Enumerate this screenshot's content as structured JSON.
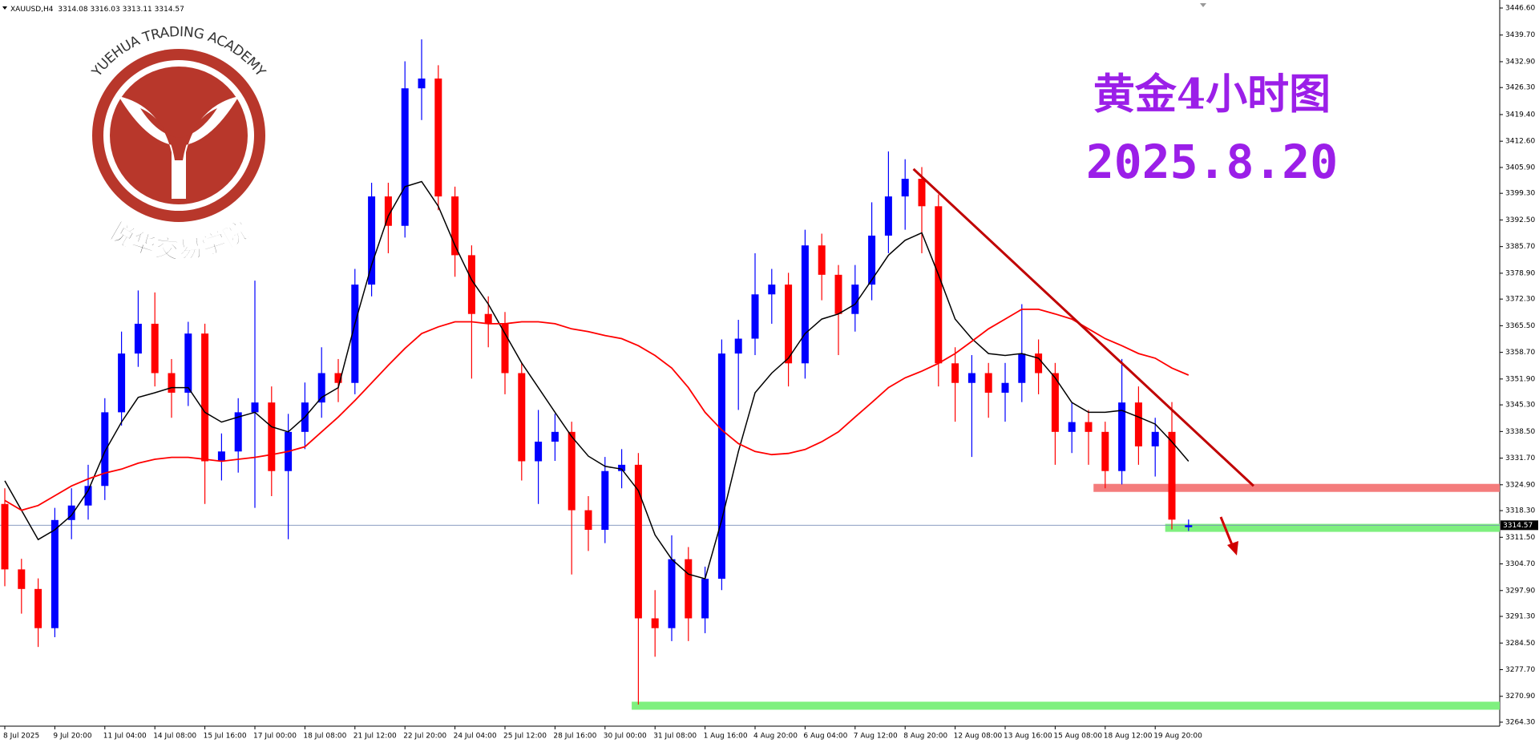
{
  "chart_data": {
    "type": "candlestick",
    "symbol": "XAUUSD,H4",
    "title": "黄金4小时图",
    "subtitle": "2025.8.20",
    "categories": [
      "8 Jul 2025",
      null,
      null,
      "9 Jul 20:00",
      null,
      null,
      "11 Jul 04:00",
      null,
      null,
      "14 Jul 08:00",
      null,
      null,
      "15 Jul 16:00",
      null,
      null,
      "17 Jul 00:00",
      null,
      null,
      "18 Jul 08:00",
      null,
      null,
      "21 Jul 12:00",
      null,
      null,
      "22 Jul 20:00",
      null,
      null,
      "24 Jul 04:00",
      null,
      null,
      "25 Jul 12:00",
      null,
      null,
      "28 Jul 16:00",
      null,
      null,
      "30 Jul 00:00",
      null,
      null,
      "31 Jul 08:00",
      null,
      null,
      "1 Aug 16:00",
      null,
      null,
      "4 Aug 20:00",
      null,
      null,
      "6 Aug 04:00",
      null,
      null,
      "7 Aug 12:00",
      null,
      null,
      "8 Aug 20:00",
      null,
      null,
      "12 Aug 08:00",
      null,
      null,
      "13 Aug 16:00",
      null,
      null,
      "15 Aug 08:00",
      null,
      null,
      "18 Aug 12:00",
      null,
      null,
      "19 Aug 20:00",
      null,
      null
    ],
    "ohlc": [
      [
        3320.0,
        3324.0,
        3299.0,
        3303.3
      ],
      [
        3303.3,
        3306.0,
        3292.0,
        3298.3
      ],
      [
        3298.3,
        3301.0,
        3283.5,
        3288.3
      ],
      [
        3288.3,
        3319.0,
        3286.0,
        3315.9
      ],
      [
        3315.9,
        3324.0,
        3311.0,
        3319.6
      ],
      [
        3319.6,
        3330.0,
        3316.0,
        3324.6
      ],
      [
        3324.6,
        3347.0,
        3321.0,
        3343.4
      ],
      [
        3343.4,
        3364.0,
        3340.0,
        3358.4
      ],
      [
        3358.4,
        3374.5,
        3355.0,
        3366.0
      ],
      [
        3366.0,
        3374.0,
        3350.0,
        3353.4
      ],
      [
        3353.4,
        3357.0,
        3342.0,
        3348.4
      ],
      [
        3348.4,
        3366.5,
        3345.0,
        3363.5
      ],
      [
        3363.5,
        3366.0,
        3320.0,
        3330.9
      ],
      [
        3330.9,
        3338.0,
        3326.0,
        3333.4
      ],
      [
        3333.4,
        3347.0,
        3328.0,
        3343.4
      ],
      [
        3343.4,
        3377.0,
        3319.0,
        3345.9
      ],
      [
        3345.9,
        3350.0,
        3322.0,
        3328.4
      ],
      [
        3328.4,
        3343.0,
        3311.0,
        3338.4
      ],
      [
        3338.4,
        3351.0,
        3334.0,
        3345.9
      ],
      [
        3345.9,
        3360.0,
        3342.0,
        3353.4
      ],
      [
        3353.4,
        3357.0,
        3346.0,
        3350.9
      ],
      [
        3350.9,
        3380.0,
        3348.0,
        3376.0
      ],
      [
        3376.0,
        3402.0,
        3373.0,
        3398.5
      ],
      [
        3398.5,
        3402.0,
        3384.0,
        3391.0
      ],
      [
        3391.0,
        3433.0,
        3388.0,
        3426.1
      ],
      [
        3426.1,
        3438.6,
        3418.0,
        3428.6
      ],
      [
        3428.6,
        3432.0,
        3395.0,
        3398.5
      ],
      [
        3398.5,
        3401.0,
        3378.0,
        3383.5
      ],
      [
        3383.5,
        3386.0,
        3352.0,
        3368.5
      ],
      [
        3368.5,
        3373.0,
        3360.0,
        3366.0
      ],
      [
        3366.0,
        3369.0,
        3348.0,
        3353.4
      ],
      [
        3353.4,
        3356.0,
        3326.0,
        3330.9
      ],
      [
        3330.9,
        3344.0,
        3320.0,
        3335.9
      ],
      [
        3335.9,
        3343.0,
        3331.0,
        3338.4
      ],
      [
        3338.4,
        3341.0,
        3302.0,
        3318.4
      ],
      [
        3318.4,
        3322.0,
        3308.0,
        3313.4
      ],
      [
        3313.4,
        3332.0,
        3310.0,
        3328.4
      ],
      [
        3328.4,
        3334.0,
        3324.0,
        3330.0
      ],
      [
        3330.0,
        3333.0,
        3268.8,
        3290.8
      ],
      [
        3290.8,
        3298.0,
        3281.0,
        3288.3
      ],
      [
        3288.3,
        3312.0,
        3285.0,
        3305.9
      ],
      [
        3305.9,
        3309.0,
        3285.0,
        3290.8
      ],
      [
        3290.8,
        3304.0,
        3287.0,
        3300.9
      ],
      [
        3300.9,
        3362.0,
        3298.0,
        3358.4
      ],
      [
        3358.4,
        3367.0,
        3344.0,
        3362.2
      ],
      [
        3362.2,
        3384.0,
        3358.0,
        3373.5
      ],
      [
        3373.5,
        3380.0,
        3366.0,
        3376.0
      ],
      [
        3376.0,
        3379.0,
        3350.0,
        3355.9
      ],
      [
        3355.9,
        3390.0,
        3352.0,
        3386.0
      ],
      [
        3386.0,
        3389.0,
        3372.0,
        3378.5
      ],
      [
        3378.5,
        3381.0,
        3358.0,
        3368.5
      ],
      [
        3368.5,
        3381.0,
        3364.0,
        3376.0
      ],
      [
        3376.0,
        3397.0,
        3372.0,
        3388.5
      ],
      [
        3388.5,
        3410.0,
        3384.0,
        3398.5
      ],
      [
        3398.5,
        3408.0,
        3390.0,
        3403.0
      ],
      [
        3403.0,
        3406.0,
        3384.0,
        3396.0
      ],
      [
        3396.0,
        3399.0,
        3350.0,
        3355.9
      ],
      [
        3355.9,
        3360.0,
        3341.0,
        3350.9
      ],
      [
        3350.9,
        3358.0,
        3332.0,
        3353.4
      ],
      [
        3353.4,
        3356.0,
        3342.0,
        3348.4
      ],
      [
        3348.4,
        3356.0,
        3341.0,
        3350.9
      ],
      [
        3350.9,
        3371.0,
        3346.0,
        3358.4
      ],
      [
        3358.4,
        3362.0,
        3348.0,
        3353.4
      ],
      [
        3353.4,
        3356.0,
        3330.0,
        3338.4
      ],
      [
        3338.4,
        3346.0,
        3333.0,
        3340.9
      ],
      [
        3340.9,
        3344.0,
        3330.0,
        3338.4
      ],
      [
        3338.4,
        3341.0,
        3324.0,
        3328.4
      ],
      [
        3328.4,
        3357.0,
        3325.0,
        3345.9
      ],
      [
        3345.9,
        3350.0,
        3330.0,
        3334.7
      ],
      [
        3334.7,
        3342.0,
        3327.0,
        3338.4
      ],
      [
        3338.4,
        3346.0,
        3313.5,
        3316.0
      ],
      [
        3314.08,
        3316.03,
        3313.11,
        3314.57
      ]
    ],
    "up_color": "#0000ff",
    "down_color": "#ff0000",
    "series": [
      {
        "color": "#000000",
        "values": [
          3325.9,
          3318.4,
          3310.9,
          3313.4,
          3317.1,
          3323.4,
          3333.4,
          3340.9,
          3347.2,
          3348.4,
          3349.7,
          3349.7,
          3343.4,
          3340.9,
          3342.2,
          3343.4,
          3339.7,
          3338.4,
          3342.2,
          3347.2,
          3349.7,
          3366.0,
          3381.0,
          3393.5,
          3401.0,
          3402.3,
          3396.0,
          3386.0,
          3377.2,
          3371.0,
          3363.5,
          3356.0,
          3349.7,
          3343.4,
          3337.2,
          3332.2,
          3329.6,
          3328.9,
          3323.4,
          3312.1,
          3305.9,
          3302.1,
          3300.9,
          3315.9,
          3333.4,
          3348.4,
          3353.4,
          3357.2,
          3363.5,
          3367.2,
          3368.5,
          3371.0,
          3377.2,
          3383.5,
          3387.3,
          3389.2,
          3378.5,
          3367.2,
          3362.2,
          3358.4,
          3357.9,
          3358.4,
          3357.2,
          3352.2,
          3345.9,
          3343.4,
          3343.4,
          3343.9,
          3342.2,
          3340.4,
          3335.9,
          3330.9
        ]
      },
      {
        "color": "#ff0000",
        "values": [
          3320.9,
          3318.4,
          3319.6,
          3322.1,
          3324.6,
          3326.4,
          3327.9,
          3328.9,
          3330.4,
          3331.4,
          3331.9,
          3331.9,
          3331.4,
          3330.9,
          3331.4,
          3331.9,
          3332.6,
          3333.4,
          3334.6,
          3338.4,
          3342.2,
          3346.4,
          3350.9,
          3355.4,
          3359.7,
          3363.5,
          3365.2,
          3366.5,
          3366.5,
          3366.0,
          3366.0,
          3366.5,
          3366.5,
          3366.0,
          3364.7,
          3364.0,
          3363.0,
          3362.2,
          3360.4,
          3357.9,
          3354.7,
          3349.7,
          3343.4,
          3338.9,
          3335.4,
          3333.4,
          3332.6,
          3332.9,
          3333.9,
          3335.9,
          3338.4,
          3342.2,
          3345.9,
          3349.7,
          3352.2,
          3353.9,
          3355.9,
          3358.4,
          3361.5,
          3364.7,
          3367.2,
          3369.7,
          3369.7,
          3368.5,
          3367.2,
          3364.7,
          3362.2,
          3360.4,
          3358.4,
          3357.2,
          3354.7,
          3352.9
        ]
      }
    ],
    "ylim": [
      3264.3,
      3446.6
    ],
    "yticks": [
      {
        "value": 3446.6,
        "label": "3446.60"
      },
      {
        "value": 3439.7,
        "label": "3439.70"
      },
      {
        "value": 3432.9,
        "label": "3432.90"
      },
      {
        "value": 3426.3,
        "label": "3426.30"
      },
      {
        "value": 3419.4,
        "label": "3419.40"
      },
      {
        "value": 3412.6,
        "label": "3412.60"
      },
      {
        "value": 3405.9,
        "label": "3405.90"
      },
      {
        "value": 3399.3,
        "label": "3399.30"
      },
      {
        "value": 3392.5,
        "label": "3392.50"
      },
      {
        "value": 3385.7,
        "label": "3385.70"
      },
      {
        "value": 3378.9,
        "label": "3378.90"
      },
      {
        "value": 3372.3,
        "label": "3372.30"
      },
      {
        "value": 3365.5,
        "label": "3365.50"
      },
      {
        "value": 3358.7,
        "label": "3358.70"
      },
      {
        "value": 3351.9,
        "label": "3351.90"
      },
      {
        "value": 3345.3,
        "label": "3345.30"
      },
      {
        "value": 3338.5,
        "label": "3338.50"
      },
      {
        "value": 3331.7,
        "label": "3331.70"
      },
      {
        "value": 3324.9,
        "label": "3324.90"
      },
      {
        "value": 3318.3,
        "label": "3318.30"
      },
      {
        "value": 3311.5,
        "label": "3311.50"
      },
      {
        "value": 3304.7,
        "label": "3304.70"
      },
      {
        "value": 3297.9,
        "label": "3297.90"
      },
      {
        "value": 3291.3,
        "label": "3291.30"
      },
      {
        "value": 3284.5,
        "label": "3284.50"
      },
      {
        "value": 3277.7,
        "label": "3277.70"
      },
      {
        "value": 3270.9,
        "label": "3270.90"
      },
      {
        "value": 3264.3,
        "label": "3264.30"
      }
    ],
    "levels": [
      {
        "value": 3324.1,
        "start": 65.3,
        "color": "#f47c7c"
      },
      {
        "value": 3313.9,
        "start": 69.6,
        "color": "#7ff07f"
      },
      {
        "value": 3268.5,
        "start": 37.6,
        "color": "#7ff07f"
      }
    ],
    "trendline": {
      "x": [
        54.5,
        74.9
      ],
      "y": [
        3405.5,
        3324.6
      ],
      "color": "#c00000"
    }
  },
  "logo": {
    "text": "YUEHUA TRADING ACADEMY",
    "name": "悦华交易学院"
  }
}
